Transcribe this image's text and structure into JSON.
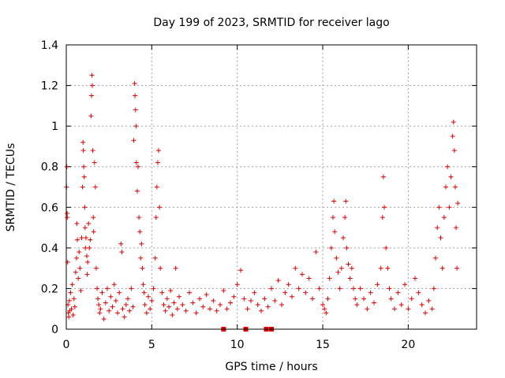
{
  "chart_data": {
    "type": "scatter",
    "title": "Day 199 of 2023, SRMTID for receiver lago",
    "xlabel": "GPS time / hours",
    "ylabel": "SRMTID / TECUs",
    "xlim": [
      0,
      24
    ],
    "ylim": [
      0,
      1.4
    ],
    "xticks": [
      0,
      5,
      10,
      15,
      20
    ],
    "yticks": [
      0,
      0.2,
      0.4,
      0.6,
      0.8,
      1,
      1.2,
      1.4
    ],
    "ytick_labels": [
      "0",
      "0.2",
      "0.4",
      "0.6",
      "0.8",
      "1",
      "1.2",
      "1.4"
    ],
    "grid": true,
    "marker": "+",
    "color": "#e00000",
    "series": [
      {
        "name": "SRMTID",
        "points": [
          [
            0.02,
            0.7
          ],
          [
            0.03,
            0.8
          ],
          [
            0.05,
            0.57
          ],
          [
            0.06,
            0.55
          ],
          [
            0.08,
            0.33
          ],
          [
            0.1,
            0.12
          ],
          [
            0.12,
            0.08
          ],
          [
            0.15,
            0.06
          ],
          [
            0.18,
            0.14
          ],
          [
            0.2,
            0.09
          ],
          [
            0.25,
            0.18
          ],
          [
            0.3,
            0.1
          ],
          [
            0.35,
            0.22
          ],
          [
            0.4,
            0.07
          ],
          [
            0.45,
            0.15
          ],
          [
            0.5,
            0.11
          ],
          [
            0.55,
            0.28
          ],
          [
            0.6,
            0.35
          ],
          [
            0.62,
            0.52
          ],
          [
            0.65,
            0.44
          ],
          [
            0.7,
            0.25
          ],
          [
            0.75,
            0.38
          ],
          [
            0.8,
            0.3
          ],
          [
            0.85,
            0.19
          ],
          [
            0.9,
            0.45
          ],
          [
            0.95,
            0.7
          ],
          [
            0.98,
            0.92
          ],
          [
            1.0,
            0.88
          ],
          [
            1.02,
            0.8
          ],
          [
            1.05,
            0.75
          ],
          [
            1.08,
            0.6
          ],
          [
            1.1,
            0.5
          ],
          [
            1.12,
            0.4
          ],
          [
            1.15,
            0.45
          ],
          [
            1.2,
            0.36
          ],
          [
            1.22,
            0.27
          ],
          [
            1.25,
            0.33
          ],
          [
            1.3,
            0.52
          ],
          [
            1.35,
            0.4
          ],
          [
            1.4,
            0.44
          ],
          [
            1.45,
            1.05
          ],
          [
            1.48,
            1.15
          ],
          [
            1.5,
            1.25
          ],
          [
            1.52,
            1.2
          ],
          [
            1.55,
            0.88
          ],
          [
            1.58,
            0.55
          ],
          [
            1.6,
            0.48
          ],
          [
            1.65,
            0.82
          ],
          [
            1.7,
            0.7
          ],
          [
            1.75,
            0.3
          ],
          [
            1.8,
            0.2
          ],
          [
            1.85,
            0.15
          ],
          [
            1.9,
            0.12
          ],
          [
            1.95,
            0.08
          ],
          [
            2.0,
            0.1
          ],
          [
            2.1,
            0.18
          ],
          [
            2.2,
            0.05
          ],
          [
            2.3,
            0.13
          ],
          [
            2.4,
            0.2
          ],
          [
            2.5,
            0.09
          ],
          [
            2.6,
            0.16
          ],
          [
            2.7,
            0.11
          ],
          [
            2.8,
            0.22
          ],
          [
            2.9,
            0.14
          ],
          [
            3.0,
            0.08
          ],
          [
            3.1,
            0.18
          ],
          [
            3.2,
            0.42
          ],
          [
            3.25,
            0.38
          ],
          [
            3.3,
            0.1
          ],
          [
            3.4,
            0.06
          ],
          [
            3.5,
            0.12
          ],
          [
            3.6,
            0.15
          ],
          [
            3.7,
            0.09
          ],
          [
            3.8,
            0.2
          ],
          [
            3.9,
            0.11
          ],
          [
            3.95,
            0.93
          ],
          [
            4.0,
            1.21
          ],
          [
            4.02,
            1.15
          ],
          [
            4.05,
            1.08
          ],
          [
            4.08,
            1.0
          ],
          [
            4.1,
            0.82
          ],
          [
            4.15,
            0.68
          ],
          [
            4.2,
            0.8
          ],
          [
            4.25,
            0.55
          ],
          [
            4.3,
            0.48
          ],
          [
            4.35,
            0.35
          ],
          [
            4.4,
            0.42
          ],
          [
            4.45,
            0.3
          ],
          [
            4.5,
            0.22
          ],
          [
            4.55,
            0.18
          ],
          [
            4.6,
            0.12
          ],
          [
            4.7,
            0.08
          ],
          [
            4.8,
            0.16
          ],
          [
            4.9,
            0.1
          ],
          [
            5.0,
            0.14
          ],
          [
            5.1,
            0.2
          ],
          [
            5.2,
            0.35
          ],
          [
            5.25,
            0.55
          ],
          [
            5.3,
            0.7
          ],
          [
            5.35,
            0.82
          ],
          [
            5.4,
            0.88
          ],
          [
            5.45,
            0.6
          ],
          [
            5.5,
            0.3
          ],
          [
            5.6,
            0.18
          ],
          [
            5.7,
            0.12
          ],
          [
            5.8,
            0.09
          ],
          [
            5.9,
            0.15
          ],
          [
            6.0,
            0.11
          ],
          [
            6.1,
            0.19
          ],
          [
            6.2,
            0.07
          ],
          [
            6.3,
            0.13
          ],
          [
            6.4,
            0.3
          ],
          [
            6.5,
            0.1
          ],
          [
            6.6,
            0.16
          ],
          [
            6.8,
            0.12
          ],
          [
            7.0,
            0.09
          ],
          [
            7.2,
            0.18
          ],
          [
            7.4,
            0.13
          ],
          [
            7.6,
            0.08
          ],
          [
            7.8,
            0.15
          ],
          [
            8.0,
            0.11
          ],
          [
            8.2,
            0.17
          ],
          [
            8.4,
            0.1
          ],
          [
            8.6,
            0.14
          ],
          [
            8.8,
            0.09
          ],
          [
            9.0,
            0.12
          ],
          [
            9.2,
            0.19
          ],
          [
            9.4,
            0.1
          ],
          [
            9.6,
            0.13
          ],
          [
            9.8,
            0.16
          ],
          [
            10.0,
            0.22
          ],
          [
            10.2,
            0.29
          ],
          [
            10.4,
            0.15
          ],
          [
            10.6,
            0.1
          ],
          [
            10.8,
            0.14
          ],
          [
            11.0,
            0.18
          ],
          [
            11.2,
            0.12
          ],
          [
            11.4,
            0.09
          ],
          [
            11.6,
            0.15
          ],
          [
            11.8,
            0.11
          ],
          [
            12.0,
            0.2
          ],
          [
            12.2,
            0.14
          ],
          [
            12.4,
            0.24
          ],
          [
            12.6,
            0.12
          ],
          [
            12.8,
            0.18
          ],
          [
            13.0,
            0.22
          ],
          [
            13.2,
            0.16
          ],
          [
            13.4,
            0.3
          ],
          [
            13.6,
            0.2
          ],
          [
            13.8,
            0.27
          ],
          [
            14.0,
            0.18
          ],
          [
            14.2,
            0.25
          ],
          [
            14.4,
            0.15
          ],
          [
            14.6,
            0.38
          ],
          [
            14.8,
            0.2
          ],
          [
            15.0,
            0.12
          ],
          [
            15.1,
            0.1
          ],
          [
            15.2,
            0.08
          ],
          [
            15.3,
            0.15
          ],
          [
            15.4,
            0.25
          ],
          [
            15.5,
            0.4
          ],
          [
            15.6,
            0.55
          ],
          [
            15.65,
            0.63
          ],
          [
            15.7,
            0.48
          ],
          [
            15.8,
            0.35
          ],
          [
            15.9,
            0.28
          ],
          [
            16.0,
            0.2
          ],
          [
            16.1,
            0.3
          ],
          [
            16.2,
            0.45
          ],
          [
            16.3,
            0.55
          ],
          [
            16.35,
            0.63
          ],
          [
            16.4,
            0.4
          ],
          [
            16.5,
            0.32
          ],
          [
            16.6,
            0.25
          ],
          [
            16.7,
            0.3
          ],
          [
            16.8,
            0.2
          ],
          [
            16.9,
            0.15
          ],
          [
            17.0,
            0.12
          ],
          [
            17.2,
            0.2
          ],
          [
            17.4,
            0.15
          ],
          [
            17.6,
            0.1
          ],
          [
            17.8,
            0.18
          ],
          [
            18.0,
            0.13
          ],
          [
            18.2,
            0.22
          ],
          [
            18.4,
            0.3
          ],
          [
            18.5,
            0.55
          ],
          [
            18.55,
            0.75
          ],
          [
            18.6,
            0.6
          ],
          [
            18.7,
            0.4
          ],
          [
            18.8,
            0.3
          ],
          [
            18.9,
            0.2
          ],
          [
            19.0,
            0.15
          ],
          [
            19.2,
            0.1
          ],
          [
            19.4,
            0.18
          ],
          [
            19.6,
            0.12
          ],
          [
            19.8,
            0.22
          ],
          [
            20.0,
            0.1
          ],
          [
            20.2,
            0.15
          ],
          [
            20.4,
            0.25
          ],
          [
            20.6,
            0.18
          ],
          [
            20.8,
            0.12
          ],
          [
            21.0,
            0.08
          ],
          [
            21.2,
            0.14
          ],
          [
            21.4,
            0.1
          ],
          [
            21.5,
            0.2
          ],
          [
            21.6,
            0.35
          ],
          [
            21.7,
            0.5
          ],
          [
            21.8,
            0.6
          ],
          [
            21.9,
            0.45
          ],
          [
            22.0,
            0.3
          ],
          [
            22.1,
            0.55
          ],
          [
            22.2,
            0.7
          ],
          [
            22.3,
            0.8
          ],
          [
            22.4,
            0.6
          ],
          [
            22.5,
            0.75
          ],
          [
            22.6,
            0.95
          ],
          [
            22.65,
            1.02
          ],
          [
            22.7,
            0.88
          ],
          [
            22.75,
            0.7
          ],
          [
            22.8,
            0.5
          ],
          [
            22.85,
            0.3
          ],
          [
            22.9,
            0.62
          ]
        ]
      }
    ],
    "gap_markers": [
      9.2,
      10.5,
      11.7,
      12.0
    ]
  }
}
